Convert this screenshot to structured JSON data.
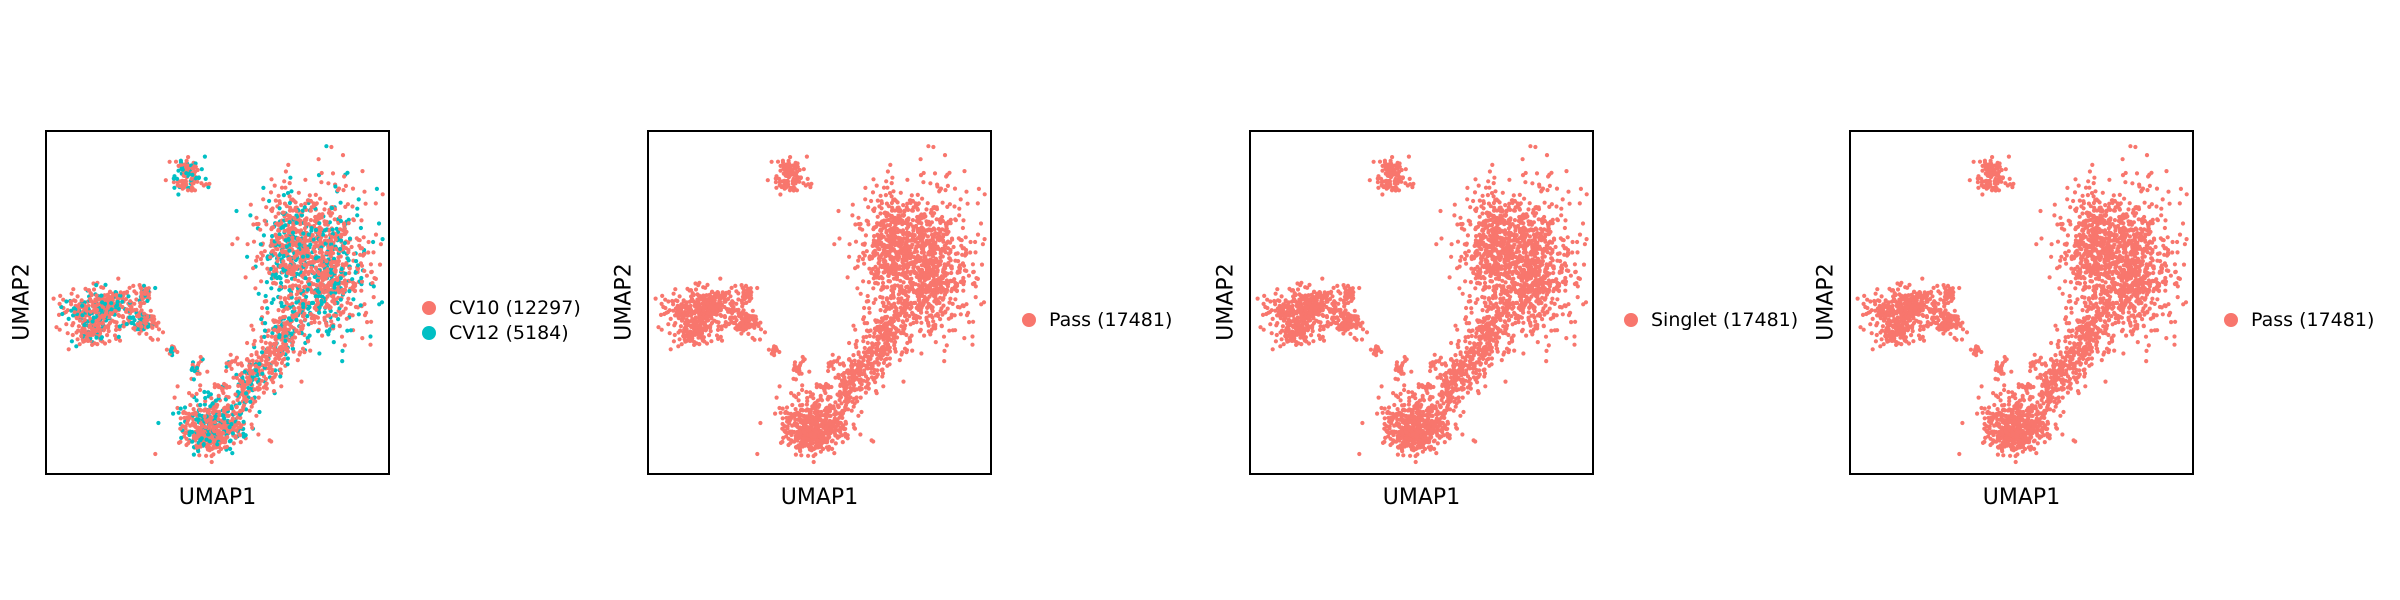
{
  "colors": {
    "salmon": "#F8766D",
    "teal": "#00BFC4"
  },
  "chart_data": [
    {
      "type": "scatter",
      "title": "",
      "xlabel": "UMAP1",
      "ylabel": "UMAP2",
      "legend_position": "right",
      "series": [
        {
          "name": "CV10 (12297)",
          "color": "#F8766D",
          "count": 12297
        },
        {
          "name": "CV12 (5184)",
          "color": "#00BFC4",
          "count": 5184
        }
      ]
    },
    {
      "type": "scatter",
      "title": "",
      "xlabel": "UMAP1",
      "ylabel": "UMAP2",
      "legend_position": "right",
      "series": [
        {
          "name": "Pass (17481)",
          "color": "#F8766D",
          "count": 17481
        }
      ]
    },
    {
      "type": "scatter",
      "title": "",
      "xlabel": "UMAP1",
      "ylabel": "UMAP2",
      "legend_position": "right",
      "series": [
        {
          "name": "Singlet (17481)",
          "color": "#F8766D",
          "count": 17481
        }
      ]
    },
    {
      "type": "scatter",
      "title": "",
      "xlabel": "UMAP1",
      "ylabel": "UMAP2",
      "legend_position": "right",
      "series": [
        {
          "name": "Pass (17481)",
          "color": "#F8766D",
          "count": 17481
        }
      ]
    }
  ]
}
